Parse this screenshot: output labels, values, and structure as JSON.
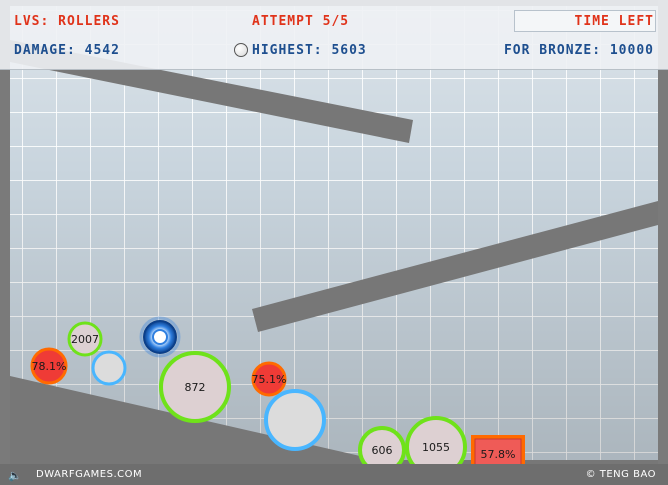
{
  "hud": {
    "level_name": "LVS: ROLLERS",
    "attempt": "ATTEMPT 5/5",
    "time_left_label": "TIME LEFT",
    "damage": "DAMAGE: 4542",
    "highest": "HIGHEST: 5603",
    "for_bronze": "FOR BRONZE: 10000"
  },
  "footer": {
    "site": "DWARFGAMES.COM",
    "credit": "© TENG BAO",
    "sound_icon": "speaker-icon"
  },
  "balls": [
    {
      "name": "ball-2007",
      "label": "2007",
      "ring": "#6fe21a",
      "fill": "#ddd0d2"
    },
    {
      "name": "ball-78pct",
      "label": "78.1%",
      "ring": "#ff6a00",
      "fill": "#ef3b36"
    },
    {
      "name": "ball-blue-small",
      "label": "",
      "ring": "#49b6ff",
      "fill": "#dcdcdc"
    },
    {
      "name": "ball-872",
      "label": "872",
      "ring": "#6fe21a",
      "fill": "#ddd0d2"
    },
    {
      "name": "ball-75pct",
      "label": "75.1%",
      "ring": "#ff6a00",
      "fill": "#ef3b36"
    },
    {
      "name": "ball-blue-large",
      "label": "",
      "ring": "#49b6ff",
      "fill": "#dcdcdc"
    },
    {
      "name": "ball-606",
      "label": "606",
      "ring": "#6fe21a",
      "fill": "#ddd0d2"
    },
    {
      "name": "ball-1055",
      "label": "1055",
      "ring": "#6fe21a",
      "fill": "#ddd0d2"
    }
  ],
  "box": {
    "label": "57.8%",
    "ring": "#ff6a00",
    "fill": "#ef5b57"
  },
  "colors": {
    "platform": "#777777",
    "hud_red": "#e0331a",
    "hud_blue": "#1e4f8f"
  }
}
